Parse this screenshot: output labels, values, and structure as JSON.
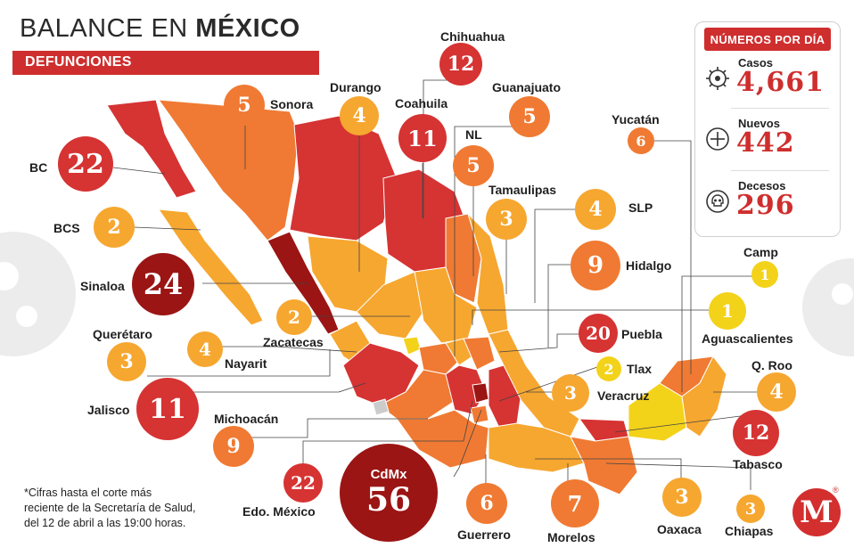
{
  "header": {
    "title_prefix": "BALANCE EN ",
    "title_bold": "MÉXICO",
    "subtitle": "DEFUNCIONES"
  },
  "panel": {
    "title": "NÚMEROS POR DÍA",
    "casos": {
      "label": "Casos",
      "value": "4,661",
      "icon": "virus-icon"
    },
    "nuevos": {
      "label": "Nuevos",
      "value": "442",
      "icon": "plus-circle-icon"
    },
    "decesos": {
      "label": "Decesos",
      "value": "296",
      "icon": "skull-icon"
    }
  },
  "footnote": {
    "line1": "*Cifras hasta el corte más",
    "line2": "reciente de la Secretaría de Salud,",
    "line3": "del 12 de abril a las 19:00 horas."
  },
  "colors": {
    "yellow": "#f3d21a",
    "light_orange": "#f6a730",
    "orange": "#f07a33",
    "red": "#d63333",
    "dark_red": "#9b1515",
    "accent": "#cf2e2e"
  },
  "states": [
    {
      "id": "bc",
      "name": "BC",
      "value": "22",
      "tier": "red"
    },
    {
      "id": "bcs",
      "name": "BCS",
      "value": "2",
      "tier": "lorange"
    },
    {
      "id": "sonora",
      "name": "Sonora",
      "value": "5",
      "tier": "orange"
    },
    {
      "id": "sinaloa",
      "name": "Sinaloa",
      "value": "24",
      "tier": "dred"
    },
    {
      "id": "chihuahua",
      "name": "Chihuahua",
      "value": "12",
      "tier": "red"
    },
    {
      "id": "durango",
      "name": "Durango",
      "value": "4",
      "tier": "lorange"
    },
    {
      "id": "coahuila",
      "name": "Coahuila",
      "value": "11",
      "tier": "red"
    },
    {
      "id": "guanajuato",
      "name": "Guanajuato",
      "value": "5",
      "tier": "orange"
    },
    {
      "id": "nl",
      "name": "NL",
      "value": "5",
      "tier": "orange"
    },
    {
      "id": "tamaulipas",
      "name": "Tamaulipas",
      "value": "3",
      "tier": "lorange"
    },
    {
      "id": "slp",
      "name": "SLP",
      "value": "4",
      "tier": "lorange"
    },
    {
      "id": "hidalgo",
      "name": "Hidalgo",
      "value": "9",
      "tier": "orange"
    },
    {
      "id": "yucatan",
      "name": "Yucatán",
      "value": "6",
      "tier": "orange"
    },
    {
      "id": "camp",
      "name": "Camp",
      "value": "1",
      "tier": "yellow"
    },
    {
      "id": "aguascalientes",
      "name": "Aguascalientes",
      "value": "1",
      "tier": "yellow"
    },
    {
      "id": "zacatecas",
      "name": "Zacatecas",
      "value": "2",
      "tier": "lorange"
    },
    {
      "id": "queretaro",
      "name": "Querétaro",
      "value": "3",
      "tier": "lorange"
    },
    {
      "id": "nayarit",
      "name": "Nayarit",
      "value": "4",
      "tier": "lorange"
    },
    {
      "id": "jalisco",
      "name": "Jalisco",
      "value": "11",
      "tier": "red"
    },
    {
      "id": "puebla",
      "name": "Puebla",
      "value": "20",
      "tier": "red"
    },
    {
      "id": "tlax",
      "name": "Tlax",
      "value": "2",
      "tier": "yellow"
    },
    {
      "id": "veracruz",
      "name": "Veracruz",
      "value": "3",
      "tier": "lorange"
    },
    {
      "id": "qroo",
      "name": "Q. Roo",
      "value": "4",
      "tier": "lorange"
    },
    {
      "id": "michoacan",
      "name": "Michoacán",
      "value": "9",
      "tier": "orange"
    },
    {
      "id": "tabasco",
      "name": "Tabasco",
      "value": "12",
      "tier": "red"
    },
    {
      "id": "edomex",
      "name": "Edo. México",
      "value": "22",
      "tier": "red"
    },
    {
      "id": "cdmx",
      "name": "CdMx",
      "value": "56",
      "tier": "dred"
    },
    {
      "id": "guerrero",
      "name": "Guerrero",
      "value": "6",
      "tier": "orange"
    },
    {
      "id": "morelos",
      "name": "Morelos",
      "value": "7",
      "tier": "orange"
    },
    {
      "id": "oaxaca",
      "name": "Oaxaca",
      "value": "3",
      "tier": "lorange"
    },
    {
      "id": "chiapas",
      "name": "Chiapas",
      "value": "3",
      "tier": "lorange"
    }
  ],
  "brand": {
    "logo_letter": "M",
    "logo_registered": "®"
  }
}
